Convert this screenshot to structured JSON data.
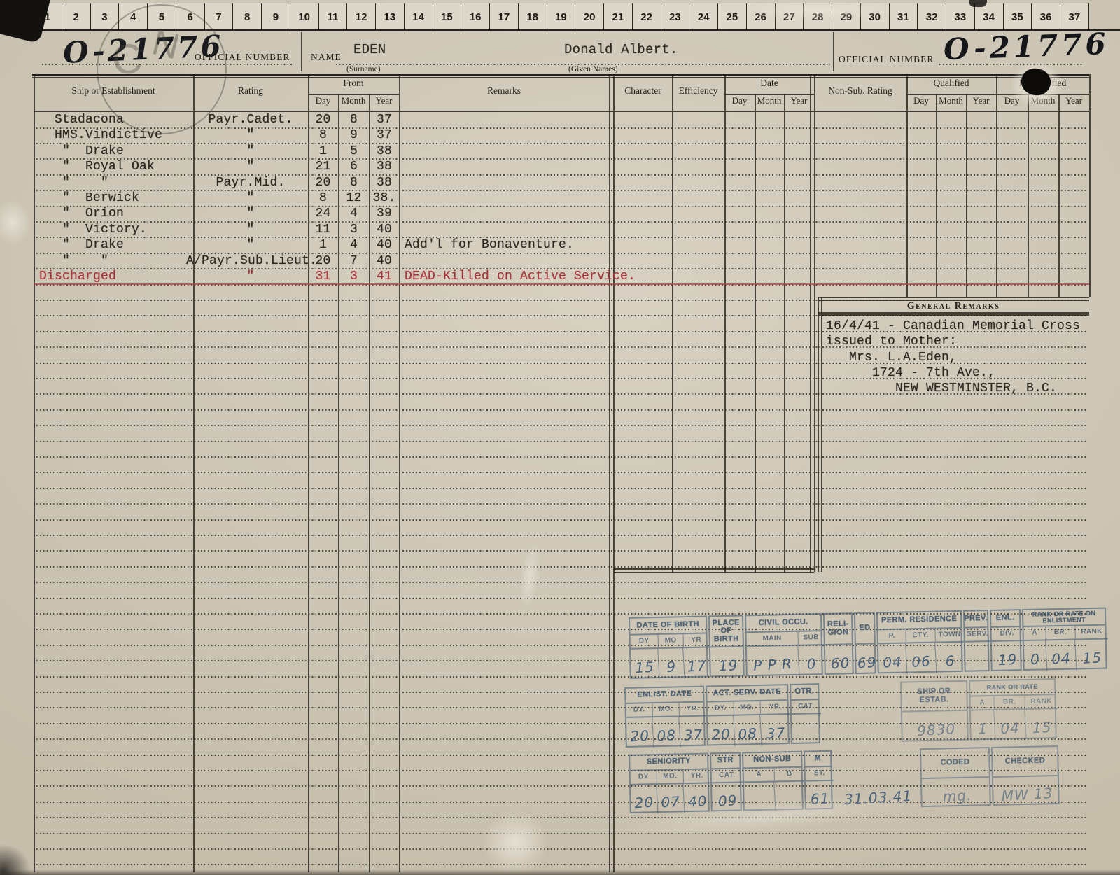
{
  "ruler": {
    "numbers": [
      "1",
      "2",
      "3",
      "4",
      "5",
      "6",
      "7",
      "8",
      "9",
      "10",
      "11",
      "12",
      "13",
      "14",
      "15",
      "16",
      "17",
      "18",
      "19",
      "20",
      "21",
      "22",
      "23",
      "24",
      "25",
      "26",
      "27",
      "28",
      "29",
      "30",
      "31",
      "32",
      "33",
      "34",
      "35",
      "36",
      "37"
    ]
  },
  "header": {
    "official_number_left": "O-21776",
    "official_number_label_left": "OFFICIAL NUMBER",
    "name_label": "NAME",
    "surname": "EDEN",
    "surname_caption": "(Surname)",
    "given_names": "Donald Albert.",
    "given_names_caption": "(Given Names)",
    "official_number_label_right": "OFFICIAL NUMBER",
    "official_number_right": "O-21776",
    "corner_stamp_letters": [
      "C",
      "N"
    ]
  },
  "table": {
    "headers": {
      "ship": "Ship or Establishment",
      "rating": "Rating",
      "from": "From",
      "day": "Day",
      "month": "Month",
      "year": "Year",
      "remarks": "Remarks",
      "character": "Character",
      "efficiency": "Efficiency",
      "date": "Date",
      "nonsub": "Non-Sub. Rating",
      "qualified": "Qualified",
      "requalified": "Re-qualified"
    },
    "rows": [
      {
        "ship": "  Stadacona",
        "rating": "Payr.Cadet.",
        "day": "20",
        "month": "8",
        "year": "37",
        "remarks": "",
        "red": false
      },
      {
        "ship": "  HMS.Vindictive",
        "rating": "\"",
        "day": "8",
        "month": "9",
        "year": "37",
        "remarks": "",
        "red": false
      },
      {
        "ship": "   \"  Drake",
        "rating": "\"",
        "day": "1",
        "month": "5",
        "year": "38",
        "remarks": "",
        "red": false
      },
      {
        "ship": "   \"  Royal Oak",
        "rating": "\"",
        "day": "21",
        "month": "6",
        "year": "38",
        "remarks": "",
        "red": false
      },
      {
        "ship": "   \"    \"",
        "rating": "Payr.Mid.",
        "day": "20",
        "month": "8",
        "year": "38",
        "remarks": "",
        "red": false
      },
      {
        "ship": "   \"  Berwick",
        "rating": "\"",
        "day": "8",
        "month": "12",
        "year": "38.",
        "remarks": "",
        "red": false
      },
      {
        "ship": "   \"  Orion",
        "rating": "\"",
        "day": "24",
        "month": "4",
        "year": "39",
        "remarks": "",
        "red": false
      },
      {
        "ship": "   \"  Victory.",
        "rating": "\"",
        "day": "11",
        "month": "3",
        "year": "40",
        "remarks": "",
        "red": false
      },
      {
        "ship": "   \"  Drake",
        "rating": "\"",
        "day": "1",
        "month": "4",
        "year": "40",
        "remarks": "Add'l for Bonaventure.",
        "red": false
      },
      {
        "ship": "   \"    \"",
        "rating": "A/Payr.Sub.Lieut.",
        "day": "20",
        "month": "7",
        "year": "40",
        "remarks": "",
        "red": false
      },
      {
        "ship": "Discharged",
        "rating": "\"",
        "day": "31",
        "month": "3",
        "year": "41",
        "remarks": "DEAD-Killed on Active Service.",
        "red": true
      }
    ]
  },
  "general_remarks": {
    "title": "General Remarks",
    "lines": [
      "16/4/41 - Canadian Memorial Cross",
      "issued to Mother:",
      "   Mrs. L.A.Eden,",
      "      1724 - 7th Ave.,",
      "         NEW WESTMINSTER, B.C."
    ]
  },
  "stamp_grid": {
    "sections": [
      {
        "groups": [
          {
            "title": "DATE OF BIRTH",
            "subs": [
              "DY",
              "MO",
              "YR"
            ],
            "values": [
              "15",
              "9",
              "17"
            ]
          },
          {
            "title": "PLACE OF BIRTH",
            "subs": [],
            "values": [
              "19"
            ]
          },
          {
            "title": "CIVIL OCCU.",
            "subs": [
              "MAIN",
              "SUB"
            ],
            "values": [
              "P P R",
              "0"
            ]
          },
          {
            "title": "RELI- GION",
            "subs": [],
            "values": [
              "60"
            ]
          },
          {
            "title": "ED",
            "subs": [],
            "values": [
              "69"
            ]
          },
          {
            "title": "PERM. RESIDENCE",
            "subs": [
              "P.",
              "CTY.",
              "TOWN"
            ],
            "values": [
              "04",
              "06",
              "6"
            ]
          },
          {
            "title": "PREV.",
            "subs": [
              "SERV."
            ],
            "values": [
              ""
            ]
          },
          {
            "title": "ENL.",
            "subs": [
              "DIV."
            ],
            "values": [
              "19"
            ]
          },
          {
            "title": "RANK OR RATE ON ENLISTMENT",
            "subs": [
              "A",
              "BR.",
              "RANK"
            ],
            "values": [
              "0",
              "04",
              "15"
            ]
          }
        ]
      },
      {
        "groups": [
          {
            "title": "ENLIST. DATE",
            "subs": [
              "DY.",
              "MO.",
              "YR."
            ],
            "values": [
              "20",
              "08",
              "37"
            ]
          },
          {
            "title": "ACT. SERV. DATE",
            "subs": [
              "DY.",
              "MO.",
              "YR."
            ],
            "values": [
              "20",
              "08",
              "37"
            ]
          },
          {
            "title": "OTR.",
            "subs": [
              "CAT."
            ],
            "values": [
              ""
            ]
          },
          {
            "title": "",
            "subs": [],
            "values": [
              ""
            ]
          },
          {
            "title": "SHIP OR ESTAB.",
            "subs": [],
            "values": [
              "9830"
            ]
          },
          {
            "title": "RANK OR RATE",
            "subs": [
              "A",
              "BR.",
              "RANK"
            ],
            "values": [
              "1",
              "04",
              "15"
            ]
          }
        ]
      },
      {
        "groups": [
          {
            "title": "SENIORITY",
            "subs": [
              "DY",
              "MO.",
              "YR."
            ],
            "values": [
              "20",
              "07",
              "40"
            ]
          },
          {
            "title": "STR",
            "subs": [
              "CAT."
            ],
            "values": [
              "09"
            ]
          },
          {
            "title": "NON-SUB",
            "subs": [
              "A",
              "B"
            ],
            "values": [
              "",
              ""
            ]
          },
          {
            "title": "M",
            "subs": [
              "ST."
            ],
            "values": [
              "61"
            ]
          },
          {
            "title": "",
            "subs": [],
            "values": [
              "31.03.41"
            ]
          },
          {
            "title": "CODED",
            "subs": [],
            "values": [
              "mg."
            ]
          },
          {
            "title": "CHECKED",
            "subs": [],
            "values": [
              "MW 13"
            ]
          }
        ]
      }
    ]
  },
  "colors": {
    "paper": "#cfc8b8",
    "typed_ink": "#2c2721",
    "red_ink": "#a6333a",
    "stamp_blue": "#51677f",
    "rule_ink": "#2b251d"
  }
}
